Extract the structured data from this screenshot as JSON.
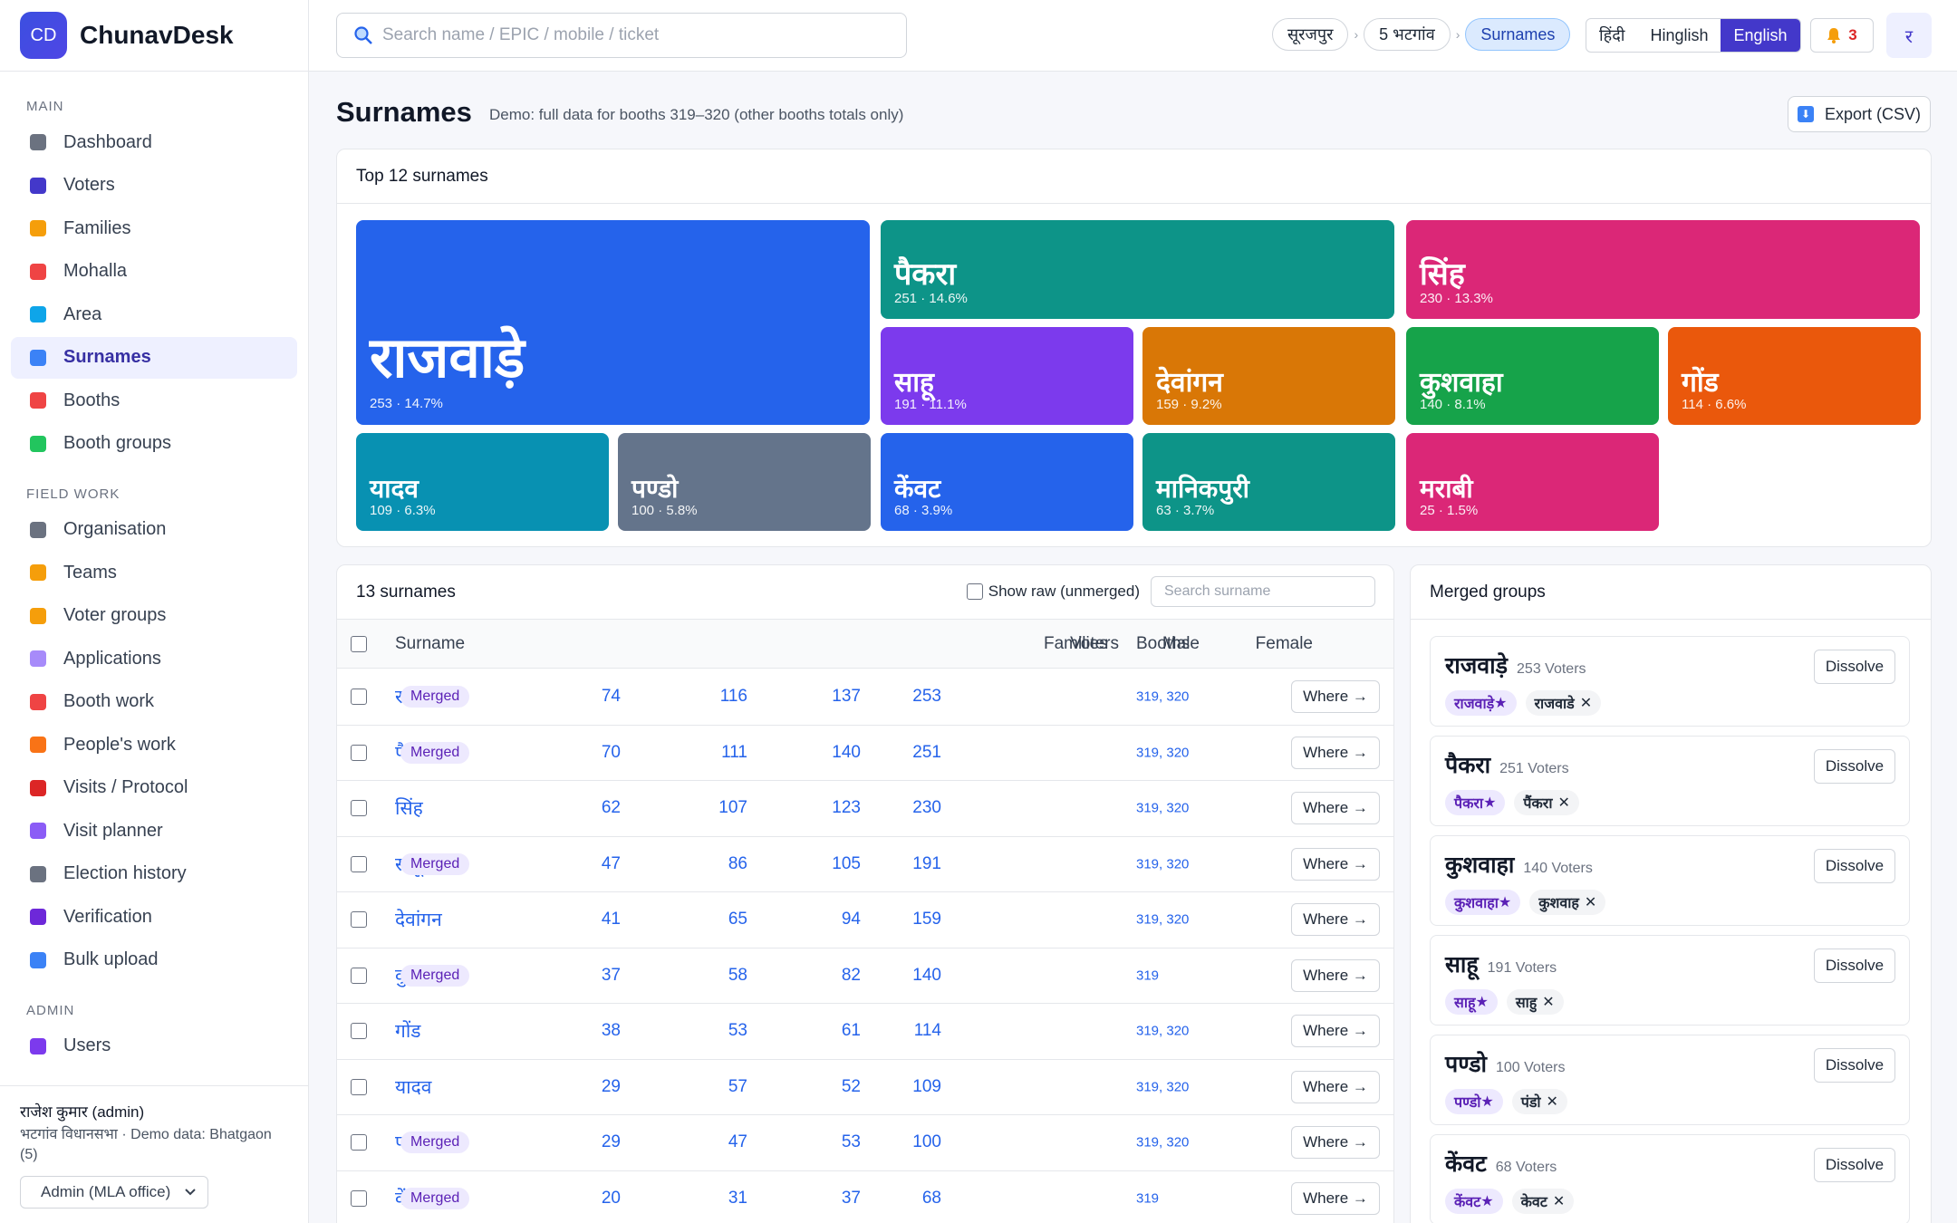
{
  "app": {
    "logo_text": "CD",
    "name": "ChunavDesk"
  },
  "sidebar": {
    "sections": [
      {
        "title": "MAIN",
        "items": [
          {
            "label": "Dashboard",
            "icon": "grid-icon",
            "color": "#6b7280"
          },
          {
            "label": "Voters",
            "icon": "person-icon",
            "color": "#4338ca"
          },
          {
            "label": "Families",
            "icon": "family-icon",
            "color": "#f59e0b"
          },
          {
            "label": "Mohalla",
            "icon": "houses-icon",
            "color": "#ef4444"
          },
          {
            "label": "Area",
            "icon": "map-icon",
            "color": "#0ea5e9"
          },
          {
            "label": "Surnames",
            "icon": "abc-icon",
            "color": "#3b82f6",
            "active": true
          },
          {
            "label": "Booths",
            "icon": "pin-icon",
            "color": "#ef4444"
          },
          {
            "label": "Booth groups",
            "icon": "puzzle-icon",
            "color": "#22c55e"
          }
        ]
      },
      {
        "title": "FIELD WORK",
        "items": [
          {
            "label": "Organisation",
            "icon": "building-icon",
            "color": "#6b7280"
          },
          {
            "label": "Teams",
            "icon": "handshake-icon",
            "color": "#f59e0b"
          },
          {
            "label": "Voter groups",
            "icon": "tag-icon",
            "color": "#f59e0b"
          },
          {
            "label": "Applications",
            "icon": "inbox-icon",
            "color": "#a78bfa"
          },
          {
            "label": "Booth work",
            "icon": "tools-icon",
            "color": "#ef4444"
          },
          {
            "label": "People's work",
            "icon": "hand-icon",
            "color": "#f97316"
          },
          {
            "label": "Visits / Protocol",
            "icon": "car-icon",
            "color": "#dc2626"
          },
          {
            "label": "Visit planner",
            "icon": "calendar-icon",
            "color": "#8b5cf6"
          },
          {
            "label": "Election history",
            "icon": "archive-icon",
            "color": "#6b7280"
          },
          {
            "label": "Verification",
            "icon": "check-icon",
            "color": "#6d28d9"
          },
          {
            "label": "Bulk upload",
            "icon": "upload-icon",
            "color": "#3b82f6"
          }
        ]
      },
      {
        "title": "ADMIN",
        "items": [
          {
            "label": "Users",
            "icon": "users-icon",
            "color": "#7c3aed"
          }
        ]
      }
    ],
    "footer": {
      "user": "राजेश कुमार (admin)",
      "meta": "भटगांव विधानसभा · Demo data: Bhatgaon (5)",
      "role": "Admin (MLA office)"
    }
  },
  "topbar": {
    "search_placeholder": "Search name / EPIC / mobile / ticket",
    "crumbs": [
      "सूरजपुर",
      "5 भटगांव",
      "Surnames"
    ],
    "languages": [
      "हिंदी",
      "Hinglish",
      "English"
    ],
    "active_language": "English",
    "notifications": "3",
    "avatar_initial": "र"
  },
  "page": {
    "title": "Surnames",
    "subtitle": "Demo: full data for booths 319–320 (other booths totals only)",
    "export_label": "Export (CSV)"
  },
  "treemap": {
    "title": "Top 12 surnames",
    "tiles": [
      {
        "name": "राजवाड़े",
        "count": 253,
        "pct": "14.7%",
        "color": "#2563eb"
      },
      {
        "name": "पैकरा",
        "count": 251,
        "pct": "14.6%",
        "color": "#0d9488"
      },
      {
        "name": "सिंह",
        "count": 230,
        "pct": "13.3%",
        "color": "#db2777"
      },
      {
        "name": "साहू",
        "count": 191,
        "pct": "11.1%",
        "color": "#7c3aed"
      },
      {
        "name": "देवांगन",
        "count": 159,
        "pct": "9.2%",
        "color": "#d97706"
      },
      {
        "name": "कुशवाहा",
        "count": 140,
        "pct": "8.1%",
        "color": "#16a34a"
      },
      {
        "name": "गोंड",
        "count": 114,
        "pct": "6.6%",
        "color": "#ea580c"
      },
      {
        "name": "यादव",
        "count": 109,
        "pct": "6.3%",
        "color": "#0891b2"
      },
      {
        "name": "पण्डो",
        "count": 100,
        "pct": "5.8%",
        "color": "#64748b"
      },
      {
        "name": "केंवट",
        "count": 68,
        "pct": "3.9%",
        "color": "#2563eb"
      },
      {
        "name": "मानिकपुरी",
        "count": 63,
        "pct": "3.7%",
        "color": "#0d9488"
      },
      {
        "name": "मराबी",
        "count": 25,
        "pct": "1.5%",
        "color": "#db2777"
      }
    ]
  },
  "table": {
    "title": "13 surnames",
    "show_raw_label": "Show raw (unmerged)",
    "search_placeholder": "Search surname",
    "columns": [
      "Surname",
      "Voters",
      "Male",
      "Female",
      "Families",
      "Booths"
    ],
    "merged_label": "Merged",
    "where_label": "Where →",
    "rows": [
      {
        "surname": "राजवाड़े",
        "alias": "+ राजवाडे",
        "merged": true,
        "voters": "253",
        "male": "137",
        "female": "116",
        "families": "74",
        "booths": "319, 320"
      },
      {
        "surname": "पैकरा",
        "alias": "+ पैंकरा",
        "merged": true,
        "voters": "251",
        "male": "140",
        "female": "111",
        "families": "70",
        "booths": "319, 320"
      },
      {
        "surname": "सिंह",
        "alias": "",
        "merged": false,
        "voters": "230",
        "male": "123",
        "female": "107",
        "families": "62",
        "booths": "319, 320"
      },
      {
        "surname": "साहू",
        "alias": "+ साहु",
        "merged": true,
        "voters": "191",
        "male": "105",
        "female": "86",
        "families": "47",
        "booths": "319, 320"
      },
      {
        "surname": "देवांगन",
        "alias": "",
        "merged": false,
        "voters": "159",
        "male": "94",
        "female": "65",
        "families": "41",
        "booths": "319, 320"
      },
      {
        "surname": "कुशवाहा",
        "alias": "+ कुशवाह",
        "merged": true,
        "voters": "140",
        "male": "82",
        "female": "58",
        "families": "37",
        "booths": "319"
      },
      {
        "surname": "गोंड",
        "alias": "",
        "merged": false,
        "voters": "114",
        "male": "61",
        "female": "53",
        "families": "38",
        "booths": "319, 320"
      },
      {
        "surname": "यादव",
        "alias": "",
        "merged": false,
        "voters": "109",
        "male": "52",
        "female": "57",
        "families": "29",
        "booths": "319, 320"
      },
      {
        "surname": "पण्डो",
        "alias": "+ पंडो",
        "merged": true,
        "voters": "100",
        "male": "53",
        "female": "47",
        "families": "29",
        "booths": "319, 320"
      },
      {
        "surname": "केंवट",
        "alias": "+ केवट",
        "merged": true,
        "voters": "68",
        "male": "37",
        "female": "31",
        "families": "20",
        "booths": "319"
      }
    ]
  },
  "merged_groups": {
    "title": "Merged groups",
    "dissolve_label": "Dissolve",
    "voters_suffix": "Voters",
    "groups": [
      {
        "name": "राजवाड़े",
        "voters": "253",
        "canonical": "राजवाड़े",
        "variant": "राजवाडे"
      },
      {
        "name": "पैकरा",
        "voters": "251",
        "canonical": "पैकरा",
        "variant": "पैंकरा"
      },
      {
        "name": "कुशवाहा",
        "voters": "140",
        "canonical": "कुशवाहा",
        "variant": "कुशवाह"
      },
      {
        "name": "साहू",
        "voters": "191",
        "canonical": "साहू",
        "variant": "साहु"
      },
      {
        "name": "पण्डो",
        "voters": "100",
        "canonical": "पण्डो",
        "variant": "पंडो"
      },
      {
        "name": "केंवट",
        "voters": "68",
        "canonical": "केंवट",
        "variant": "केवट"
      }
    ]
  }
}
